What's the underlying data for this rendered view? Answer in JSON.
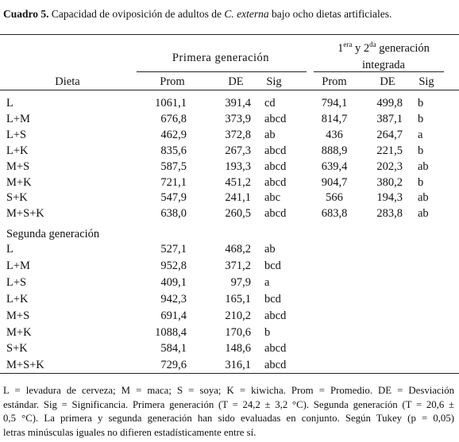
{
  "title": {
    "label": "Cuadro 5.",
    "text": "Capacidad de oviposición de adultos de",
    "species": "C. externa",
    "rest": "bajo ocho dietas artificiales."
  },
  "table": {
    "group1": "Primera generación",
    "group2_parts": [
      "1",
      "era",
      " y 2",
      "da",
      " generación"
    ],
    "group2_line2": "integrada",
    "columns": [
      "Dieta",
      "Prom",
      "DE",
      "Sig",
      "Prom",
      "DE",
      "Sig"
    ],
    "rows": [
      [
        "L",
        "1061,1",
        "391,4",
        "cd",
        "794,1",
        "499,8",
        "b"
      ],
      [
        "L+M",
        "676,8",
        "373,9",
        "abcd",
        "814,7",
        "387,1",
        "b"
      ],
      [
        "L+S",
        "462,9",
        "372,8",
        "ab",
        "436",
        "264,7",
        "a"
      ],
      [
        "L+K",
        "835,6",
        "267,3",
        "abcd",
        "888,9",
        "221,5",
        "b"
      ],
      [
        "M+S",
        "587,5",
        "193,3",
        "abcd",
        "639,4",
        "202,3",
        "ab"
      ],
      [
        "M+K",
        "721,1",
        "451,2",
        "abcd",
        "904,7",
        "380,2",
        "b"
      ],
      [
        "S+K",
        "547,9",
        "241,1",
        "abc",
        "566",
        "194,3",
        "ab"
      ],
      [
        "M+S+K",
        "638,0",
        "260,5",
        "abcd",
        "683,8",
        "283,8",
        "ab"
      ]
    ],
    "section2": "Segunda generación",
    "rows2": [
      [
        "L",
        "527,1",
        "468,2",
        "ab"
      ],
      [
        "L+M",
        "952,8",
        "371,2",
        "bcd"
      ],
      [
        "L+S",
        "409,1",
        "97,9",
        "a"
      ],
      [
        "L+K",
        "942,3",
        "165,1",
        "bcd"
      ],
      [
        "M+S",
        "691,4",
        "210,2",
        "abcd"
      ],
      [
        "M+K",
        "1088,4",
        "170,6",
        "b"
      ],
      [
        "S+K",
        "584,1",
        "148,6",
        "abcd"
      ],
      [
        "M+S+K",
        "729,6",
        "316,1",
        "abcd"
      ]
    ]
  },
  "footnote": [
    "L = levadura de cerveza; M = maca;  S = soya;  K = kiwicha. Prom = Promedio. DE = Desviación",
    "estándar. Sig = Significancia. Primera generación (T = 24,2 ± 3,2 °C). Segunda generación (T = 20,6 ±",
    "0,5 °C).  La primera y segunda generación han sido evaluadas en conjunto. Según Tukey (p = 0,05)",
    "letras minúsculas iguales no difieren estadísticamente entre sí."
  ]
}
